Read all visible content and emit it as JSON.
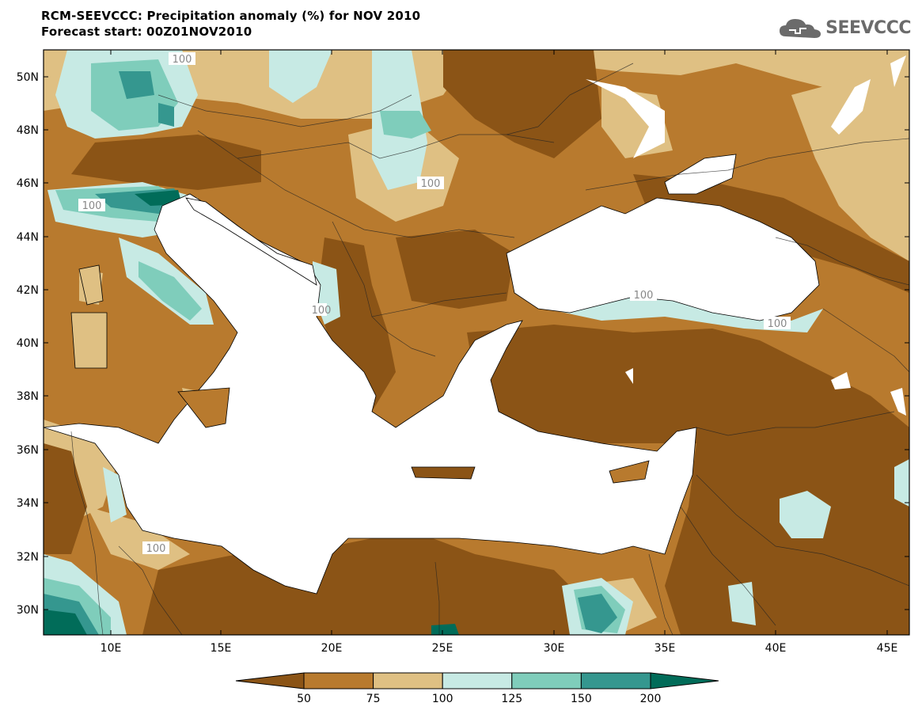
{
  "header": {
    "title": "RCM-SEEVCCC: Precipitation anomaly (%) for NOV 2010",
    "subtitle": "Forecast start: 00Z01NOV2010"
  },
  "logo": {
    "text": "SEEVCCC",
    "icon": "cloud-icon"
  },
  "map": {
    "lon_ticks": [
      "10E",
      "15E",
      "20E",
      "25E",
      "30E",
      "35E",
      "40E",
      "45E"
    ],
    "lat_ticks": [
      "50N",
      "48N",
      "46N",
      "44N",
      "42N",
      "40N",
      "38N",
      "36N",
      "34N",
      "32N",
      "30N"
    ],
    "contour_labels": [
      "100",
      "100",
      "100",
      "100",
      "100",
      "100",
      "100"
    ],
    "colors": {
      "below_50": "#8b5416",
      "c50_75": "#b87a2e",
      "c75_100": "#dfc083",
      "c100_125": "#c7eae4",
      "c125_150": "#7fcdbb",
      "c150_200": "#35978f",
      "above_200": "#016c59",
      "sea": "#ffffff"
    }
  },
  "colorbar": {
    "labels": [
      "50",
      "75",
      "100",
      "125",
      "150",
      "200"
    ],
    "colors": [
      "#8b5416",
      "#b87a2e",
      "#dfc083",
      "#c7eae4",
      "#7fcdbb",
      "#35978f",
      "#016c59"
    ]
  }
}
